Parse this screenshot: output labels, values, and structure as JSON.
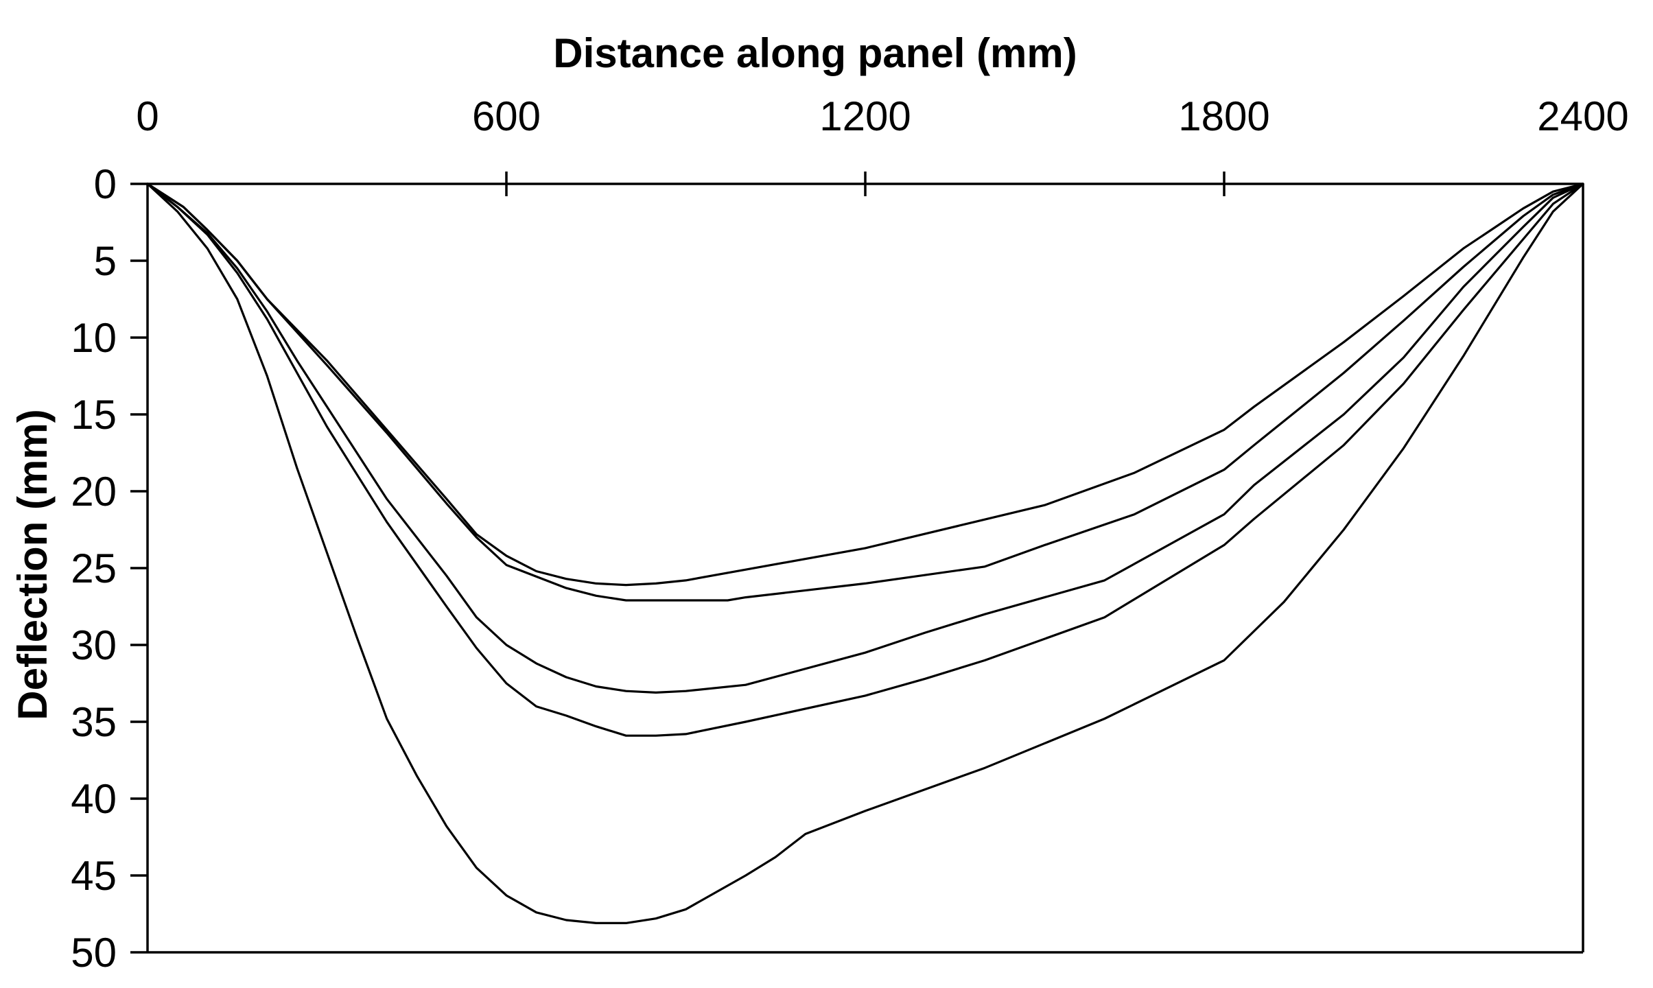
{
  "chart_data": {
    "type": "line",
    "title": "",
    "xlabel": "Distance along panel (mm)",
    "ylabel": "Deflection (mm)",
    "xlim": [
      0,
      2400
    ],
    "ylim": [
      0,
      50
    ],
    "y_inverted": true,
    "x_axis_position": "top",
    "grid": false,
    "legend": "none",
    "line_color": "#000000",
    "x_ticks": [
      0,
      600,
      1200,
      1800,
      2400
    ],
    "x_tick_labels": [
      "0",
      "600",
      "1200",
      "1800",
      "2400"
    ],
    "y_ticks": [
      0,
      5,
      10,
      15,
      20,
      25,
      30,
      35,
      40,
      45,
      50
    ],
    "y_tick_labels": [
      "0",
      "5",
      "10",
      "15",
      "20",
      "25",
      "30",
      "35",
      "40",
      "45",
      "50"
    ],
    "series": [
      {
        "x": [
          0,
          60,
          100,
          150,
          200,
          300,
          400,
          500,
          550,
          600,
          650,
          700,
          750,
          800,
          850,
          900,
          1000,
          1200,
          1500,
          1650,
          1800,
          1850,
          2000,
          2100,
          2200,
          2250,
          2300,
          2350,
          2400
        ],
        "y": [
          0,
          1.5,
          3,
          5,
          7.5,
          11.5,
          16,
          20.5,
          22.8,
          24.2,
          25.2,
          25.7,
          26,
          26.1,
          26,
          25.8,
          25.1,
          23.7,
          20.9,
          18.8,
          16,
          14.5,
          10.3,
          7.3,
          4.2,
          2.9,
          1.6,
          0.5,
          0
        ]
      },
      {
        "x": [
          0,
          60,
          100,
          150,
          200,
          300,
          400,
          500,
          550,
          600,
          700,
          750,
          800,
          850,
          900,
          970,
          1000,
          1200,
          1400,
          1500,
          1650,
          1800,
          1850,
          2000,
          2100,
          2200,
          2300,
          2350,
          2400
        ],
        "y": [
          0,
          1.5,
          3,
          5,
          7.5,
          11.8,
          16.2,
          20.8,
          23,
          24.8,
          26.3,
          26.8,
          27.1,
          27.1,
          27.1,
          27.1,
          26.9,
          26,
          24.9,
          23.5,
          21.5,
          18.6,
          17,
          12.3,
          8.9,
          5.4,
          2.1,
          0.7,
          0
        ]
      },
      {
        "x": [
          0,
          50,
          100,
          150,
          200,
          250,
          300,
          400,
          500,
          550,
          600,
          650,
          700,
          750,
          800,
          850,
          900,
          1000,
          1200,
          1300,
          1400,
          1600,
          1800,
          1850,
          2000,
          2100,
          2200,
          2300,
          2350,
          2400
        ],
        "y": [
          0,
          1.5,
          3.2,
          5.5,
          8.3,
          11.5,
          14.5,
          20.5,
          25.5,
          28.2,
          30,
          31.2,
          32.1,
          32.7,
          33,
          33.1,
          33,
          32.6,
          30.5,
          29.2,
          28,
          25.8,
          21.5,
          19.6,
          15,
          11.3,
          6.7,
          2.8,
          0.9,
          0
        ]
      },
      {
        "x": [
          0,
          50,
          100,
          150,
          200,
          250,
          300,
          400,
          500,
          550,
          600,
          650,
          700,
          750,
          800,
          850,
          900,
          1000,
          1200,
          1300,
          1400,
          1600,
          1800,
          1850,
          2000,
          2100,
          2200,
          2300,
          2350,
          2400
        ],
        "y": [
          0,
          1.5,
          3.3,
          5.8,
          8.8,
          12.3,
          15.8,
          22,
          27.5,
          30.2,
          32.5,
          34,
          34.6,
          35.3,
          35.9,
          35.9,
          35.8,
          35,
          33.3,
          32.2,
          31,
          28.2,
          23.5,
          21.8,
          17,
          13,
          8.2,
          3.6,
          1.3,
          0
        ]
      },
      {
        "x": [
          0,
          50,
          100,
          150,
          200,
          250,
          300,
          350,
          400,
          450,
          500,
          550,
          600,
          650,
          700,
          750,
          800,
          850,
          900,
          950,
          1000,
          1050,
          1100,
          1200,
          1400,
          1600,
          1800,
          1900,
          2000,
          2100,
          2200,
          2300,
          2350,
          2400
        ],
        "y": [
          0,
          1.8,
          4.2,
          7.5,
          12.5,
          18.5,
          24,
          29.5,
          34.8,
          38.5,
          41.8,
          44.5,
          46.3,
          47.4,
          47.9,
          48.1,
          48.1,
          47.8,
          47.2,
          46.1,
          45,
          43.8,
          42.3,
          40.8,
          38,
          34.8,
          31,
          27.2,
          22.5,
          17.2,
          11.2,
          4.8,
          1.8,
          0
        ]
      }
    ]
  }
}
